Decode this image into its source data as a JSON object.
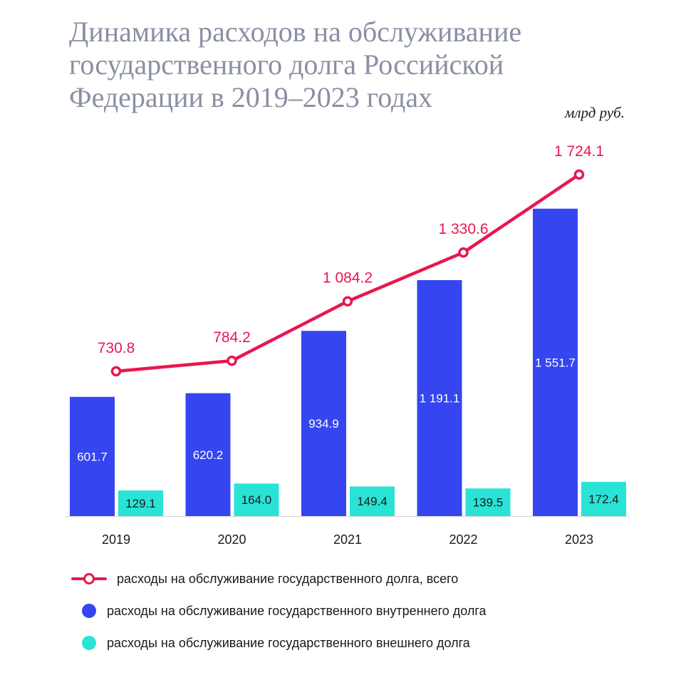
{
  "title": "Динамика расходов на обслуживание государственного долга Российской Федерации в 2019–2023 годах",
  "unit": "млрд руб.",
  "colors": {
    "total": "#e8174f",
    "domestic": "#3546f0",
    "external": "#29e3d6",
    "axis": "#cfcfcf"
  },
  "chart_data": {
    "type": "bar",
    "categories": [
      "2019",
      "2020",
      "2021",
      "2022",
      "2023"
    ],
    "series": [
      {
        "name": "расходы на обслуживание государственного внутреннего долга",
        "kind": "bar",
        "values": [
          601.7,
          620.2,
          934.9,
          1191.1,
          1551.7
        ],
        "labels": [
          "601.7",
          "620.2",
          "934.9",
          "1 191.1",
          "1 551.7"
        ]
      },
      {
        "name": "расходы на обслуживание государственного внешнего долга",
        "kind": "bar",
        "values": [
          129.1,
          164.0,
          149.4,
          139.5,
          172.4
        ],
        "labels": [
          "129.1",
          "164.0",
          "149.4",
          "139.5",
          "172.4"
        ]
      },
      {
        "name": "расходы на обслуживание государственного долга, всего",
        "kind": "line",
        "values": [
          730.8,
          784.2,
          1084.2,
          1330.6,
          1724.1
        ],
        "labels": [
          "730.8",
          "784.2",
          "1 084.2",
          "1 330.6",
          "1 724.1"
        ]
      }
    ],
    "ylim": [
      0,
      1900
    ],
    "grid": false,
    "legend": "bottom"
  }
}
